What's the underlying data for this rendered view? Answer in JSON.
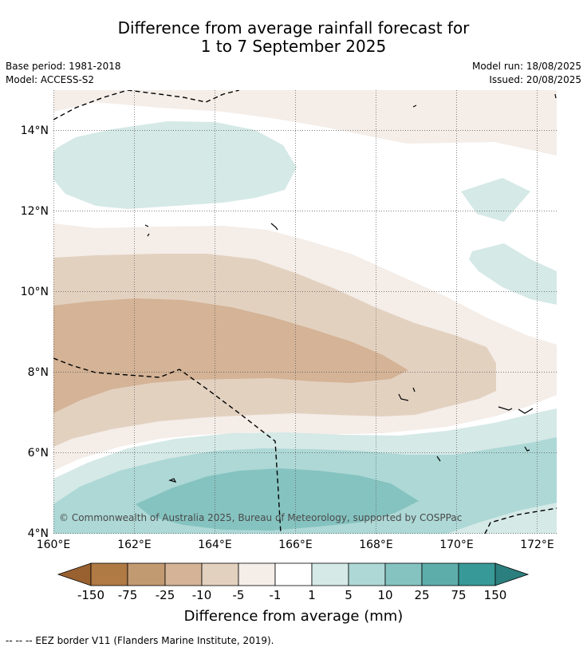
{
  "title": {
    "line1": "Difference from average rainfall forecast for",
    "line2": "1 to 7 September 2025"
  },
  "meta": {
    "base_period": "Base period: 1981-2018",
    "model": "Model: ACCESS-S2",
    "model_run": "Model run: 18/08/2025",
    "issued": "Issued: 20/08/2025"
  },
  "map": {
    "longitude_ticks": [
      "160°E",
      "162°E",
      "164°E",
      "166°E",
      "168°E",
      "170°E",
      "172°E"
    ],
    "latitude_ticks": [
      "14°N",
      "12°N",
      "10°N",
      "8°N",
      "6°N",
      "4°N"
    ],
    "lon_range": [
      160,
      172.5
    ],
    "lat_range": [
      3.9,
      14.9
    ],
    "copyright": "© Commonwealth of Australia 2025, Bureau of Meteorology, supported by COSPPac"
  },
  "colorbar": {
    "title": "Difference from average (mm)",
    "tick_labels": [
      "-150",
      "-75",
      "-25",
      "-10",
      "-5",
      "-1",
      "1",
      "5",
      "10",
      "25",
      "75",
      "150"
    ],
    "colors": [
      "#9a6130",
      "#b07a45",
      "#c29a72",
      "#d4b396",
      "#e3d1c0",
      "#f4ede8",
      "#ffffff",
      "#d5e9e7",
      "#add8d6",
      "#85c3c0",
      "#5dadab",
      "#389a98",
      "#2b7f7e"
    ]
  },
  "footnote": "--  --  -- EEZ border V11 (Flanders Marine Institute, 2019)."
}
